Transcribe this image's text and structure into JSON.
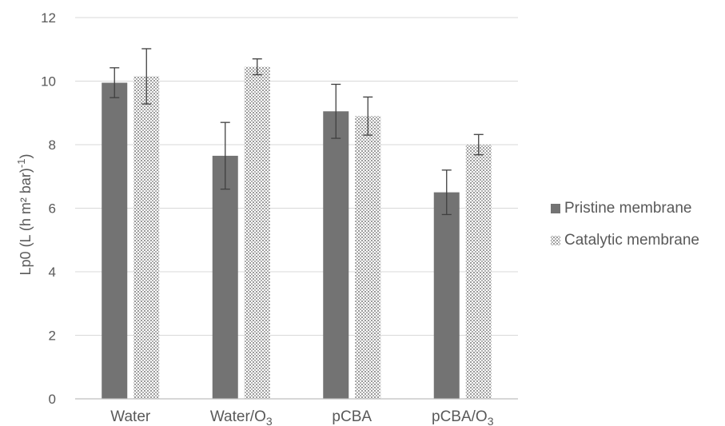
{
  "chart_data": {
    "type": "bar",
    "categories": [
      {
        "text": "Water",
        "sub": ""
      },
      {
        "text": "Water/O",
        "sub": "3"
      },
      {
        "text": "pCBA",
        "sub": ""
      },
      {
        "text": "pCBA/O",
        "sub": "3"
      }
    ],
    "series": [
      {
        "name": "Pristine membrane",
        "color": "#737373",
        "pattern": "solid",
        "values": [
          9.95,
          7.65,
          9.05,
          6.5
        ],
        "errors": [
          0.47,
          1.05,
          0.85,
          0.7
        ]
      },
      {
        "name": "Catalytic membrane",
        "color": "#d9d9d9",
        "pattern": "dotted",
        "values": [
          10.15,
          10.45,
          8.9,
          8.0
        ],
        "errors": [
          0.87,
          0.25,
          0.6,
          0.32
        ]
      }
    ],
    "ylabel": {
      "text": "Lp0 (L (h m² bar)",
      "sup": "-1",
      "tail": ")"
    },
    "ylim": [
      0,
      12
    ],
    "yticks": [
      0,
      2,
      4,
      6,
      8,
      10,
      12
    ],
    "grid": true,
    "legend_position": "right"
  }
}
